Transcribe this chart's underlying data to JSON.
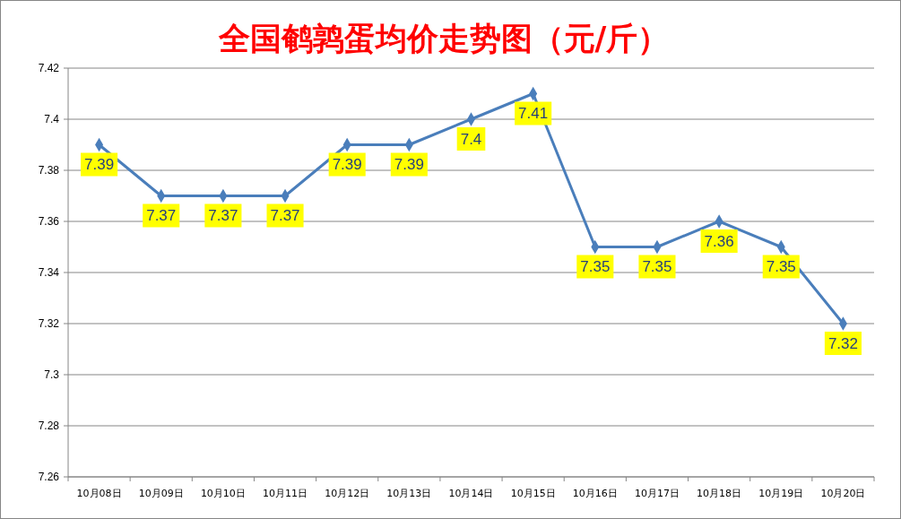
{
  "chart_data": {
    "type": "line",
    "title": "全国鹌鹑蛋均价走势图（元/斤）",
    "categories": [
      "10月08日",
      "10月09日",
      "10月10日",
      "10月11日",
      "10月12日",
      "10月13日",
      "10月14日",
      "10月15日",
      "10月16日",
      "10月17日",
      "10月18日",
      "10月19日",
      "10月20日"
    ],
    "series": [
      {
        "color": "#4a7ebb",
        "values": [
          7.39,
          7.37,
          7.37,
          7.37,
          7.39,
          7.39,
          7.4,
          7.41,
          7.35,
          7.35,
          7.36,
          7.35,
          7.32
        ]
      }
    ],
    "ylim": [
      7.26,
      7.42
    ],
    "yticks": [
      7.26,
      7.28,
      7.3,
      7.32,
      7.34,
      7.36,
      7.38,
      7.4,
      7.42
    ],
    "grid": "y",
    "marker": "diamond",
    "data_labels": true
  }
}
